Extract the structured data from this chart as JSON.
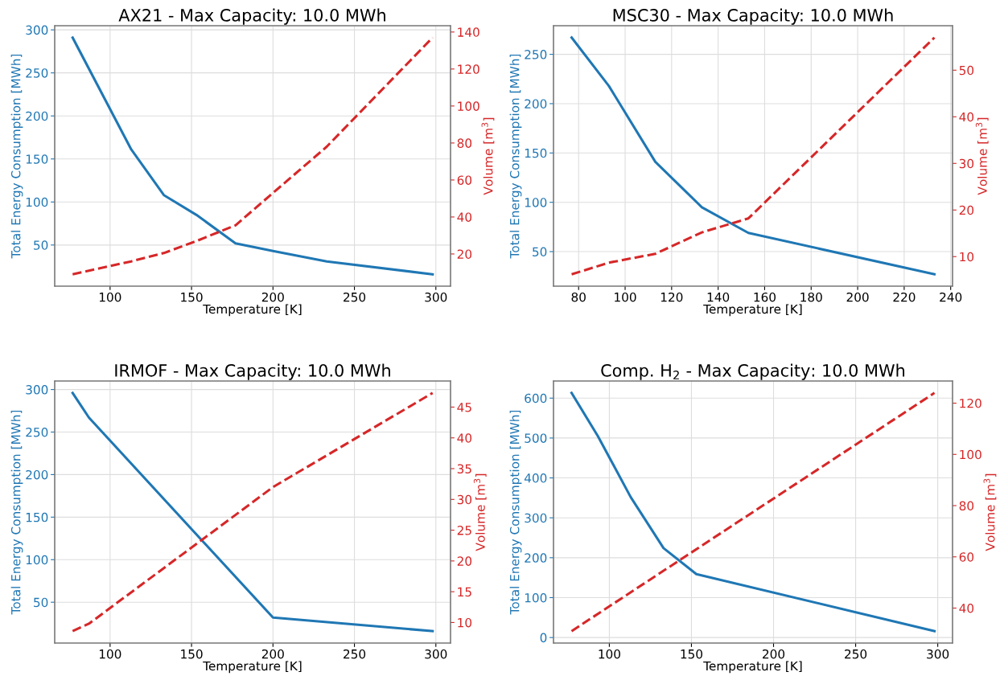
{
  "chart_data": [
    {
      "type": "line",
      "title": "AX21 - Max Capacity: 10.0 MWh",
      "xlabel": "Temperature [K]",
      "ylabel": "Total Energy Consumption [MWh]",
      "y2label": "Volume [m$^{3}$]",
      "grid": true,
      "x": [
        77,
        113,
        133,
        153,
        177,
        200,
        233,
        298
      ],
      "series": [
        {
          "color": "#1f77b4",
          "line_style": "solid",
          "values": [
            291,
            161,
            108,
            85,
            52,
            43,
            31,
            16
          ]
        },
        {
          "color": "#d62728",
          "line_style": "dashed",
          "axis": "y2",
          "values": [
            9,
            16,
            20.5,
            27,
            35.5,
            53,
            78,
            137
          ]
        }
      ],
      "xlim": [
        66,
        309
      ],
      "xticks": [
        100,
        150,
        200,
        250,
        300
      ],
      "ylim": [
        2.2,
        304.8
      ],
      "yticks": [
        50,
        100,
        150,
        200,
        250,
        300
      ],
      "y2lim": [
        2.6,
        143.4
      ],
      "y2ticks": [
        20,
        40,
        60,
        80,
        100,
        120,
        140
      ]
    },
    {
      "type": "line",
      "title": "MSC30 - Max Capacity: 10.0 MWh",
      "xlabel": "Temperature [K]",
      "ylabel": "Total Energy Consumption [MWh]",
      "y2label": "Volume [m$^{3}$]",
      "grid": true,
      "x": [
        77,
        93,
        113,
        133,
        153,
        233
      ],
      "series": [
        {
          "color": "#1f77b4",
          "line_style": "solid",
          "values": [
            267,
            218,
            141,
            95,
            69,
            27
          ]
        },
        {
          "color": "#d62728",
          "line_style": "dashed",
          "axis": "y2",
          "values": [
            6.2,
            8.7,
            10.6,
            15.2,
            18.2,
            57
          ]
        }
      ],
      "xlim": [
        69.2,
        240.8
      ],
      "xticks": [
        80,
        100,
        120,
        140,
        160,
        180,
        200,
        220,
        240
      ],
      "ylim": [
        15,
        279
      ],
      "yticks": [
        50,
        100,
        150,
        200,
        250
      ],
      "y2lim": [
        3.66,
        59.54
      ],
      "y2ticks": [
        10,
        20,
        30,
        40,
        50
      ]
    },
    {
      "type": "line",
      "title": "IRMOF - Max Capacity: 10.0 MWh",
      "xlabel": "Temperature [K]",
      "ylabel": "Total Energy Consumption [MWh]",
      "y2label": "Volume [m$^{3}$]",
      "grid": true,
      "x": [
        77,
        87,
        200,
        298
      ],
      "series": [
        {
          "color": "#1f77b4",
          "line_style": "solid",
          "values": [
            296,
            267,
            32,
            16
          ]
        },
        {
          "color": "#d62728",
          "line_style": "dashed",
          "axis": "y2",
          "values": [
            8.6,
            9.8,
            32,
            47.3
          ]
        }
      ],
      "xlim": [
        66,
        309
      ],
      "xticks": [
        100,
        150,
        200,
        250,
        300
      ],
      "ylim": [
        2,
        310
      ],
      "yticks": [
        50,
        100,
        150,
        200,
        250,
        300
      ],
      "y2lim": [
        6.66,
        49.24
      ],
      "y2ticks": [
        10,
        15,
        20,
        25,
        30,
        35,
        40,
        45
      ]
    },
    {
      "type": "line",
      "title": "Comp. H$_{2}$ - Max Capacity: 10.0 MWh",
      "xlabel": "Temperature [K]",
      "ylabel": "Total Energy Consumption [MWh]",
      "y2label": "Volume [m$^{3}$]",
      "grid": true,
      "x": [
        77,
        93,
        113,
        133,
        153,
        298
      ],
      "series": [
        {
          "color": "#1f77b4",
          "line_style": "solid",
          "values": [
            613,
            505,
            352,
            224,
            159,
            16
          ]
        },
        {
          "color": "#d62728",
          "line_style": "dashed",
          "axis": "y2",
          "x": [
            77,
            298
          ],
          "values": [
            31,
            124
          ]
        }
      ],
      "xlim": [
        66,
        309
      ],
      "xticks": [
        100,
        150,
        200,
        250,
        300
      ],
      "ylim": [
        -13.85,
        642.85
      ],
      "yticks": [
        0,
        100,
        200,
        300,
        400,
        500,
        600
      ],
      "y2lim": [
        26.35,
        128.65
      ],
      "y2ticks": [
        40,
        60,
        80,
        100,
        120
      ]
    }
  ]
}
